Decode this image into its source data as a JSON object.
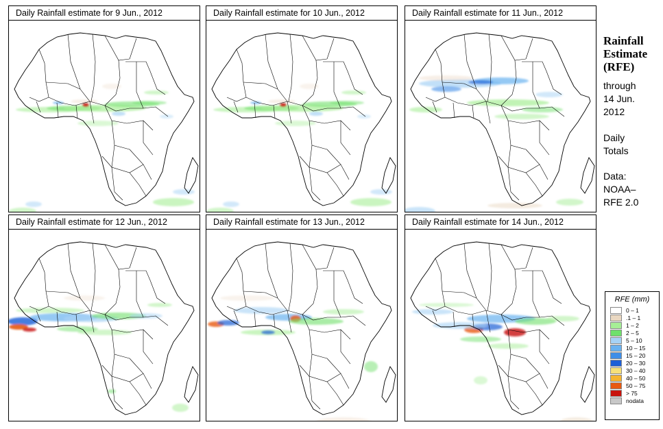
{
  "map": {
    "panels": [
      {
        "title": "Daily Rainfall estimate for  9 Jun., 2012",
        "pattern": "sahel-light"
      },
      {
        "title": "Daily Rainfall estimate for  10 Jun., 2012",
        "pattern": "sahel-light"
      },
      {
        "title": "Daily Rainfall estimate for  11 Jun., 2012",
        "pattern": "sahel-moderate"
      },
      {
        "title": "Daily Rainfall estimate for  12 Jun., 2012",
        "pattern": "west-coast-heavy"
      },
      {
        "title": "Daily Rainfall estimate for  13 Jun., 2012",
        "pattern": "west-coast-moderate"
      },
      {
        "title": "Daily Rainfall estimate for  14 Jun., 2012",
        "pattern": "central-heavy"
      }
    ]
  },
  "side": {
    "title_line1": "Rainfall",
    "title_line2": "Estimate",
    "title_line3": "(RFE)",
    "through": "through",
    "date_line1": "14 Jun.",
    "date_line2": "2012",
    "daily_line1": "Daily",
    "daily_line2": "Totals",
    "data_line1": "Data:",
    "data_line2": "NOAA–",
    "data_line3": "RFE 2.0"
  },
  "legend": {
    "title": "RFE (mm)",
    "items": [
      {
        "label": "0 – 1",
        "color": "#ffffff"
      },
      {
        "label": ".1 – 1",
        "color": "#ead8c2"
      },
      {
        "label": "1 – 2",
        "color": "#a6ee96"
      },
      {
        "label": "2 – 5",
        "color": "#6fe06b"
      },
      {
        "label": "5 – 10",
        "color": "#a6d2f5"
      },
      {
        "label": "10 – 15",
        "color": "#6ab2f0"
      },
      {
        "label": "15 – 20",
        "color": "#3f8ee8"
      },
      {
        "label": "20 – 30",
        "color": "#1d5fd6"
      },
      {
        "label": "30 – 40",
        "color": "#f6e079"
      },
      {
        "label": "40 – 50",
        "color": "#f5b530"
      },
      {
        "label": "50 – 75",
        "color": "#e85a12"
      },
      {
        "label": "> 75",
        "color": "#c8140d"
      },
      {
        "label": "nodata",
        "color": "#c8c8c8"
      }
    ]
  }
}
